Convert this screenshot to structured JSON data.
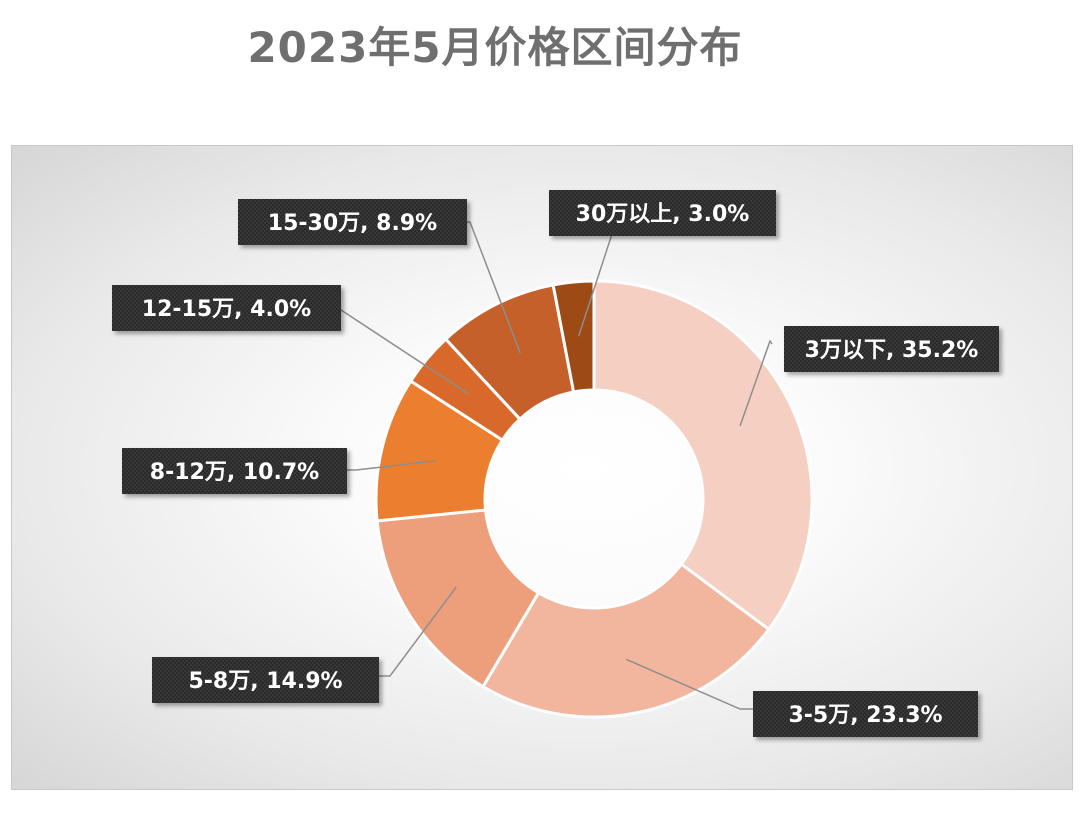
{
  "title": "2023年5月价格区间分布",
  "chart_data": {
    "type": "pie",
    "variant": "donut",
    "title": "2023年5月价格区间分布",
    "start_angle": 0,
    "direction": "clockwise",
    "legend": "none",
    "categories": [
      "3万以下",
      "3-5万",
      "5-8万",
      "8-12万",
      "12-15万",
      "15-30万",
      "30万以上"
    ],
    "values": [
      35.2,
      23.3,
      14.9,
      10.7,
      4.0,
      8.9,
      3.0
    ],
    "unit": "%",
    "data_labels": [
      "3万以下, 35.2%",
      "3-5万, 23.3%",
      "5-8万, 14.9%",
      "8-12万, 10.7%",
      "12-15万, 4.0%",
      "15-30万, 8.9%",
      "30万以上, 3.0%"
    ],
    "colors": [
      "#f5cfc2",
      "#f2b59e",
      "#ed9f7b",
      "#ec7e30",
      "#d9692a",
      "#c5602a",
      "#9d4a15"
    ]
  }
}
